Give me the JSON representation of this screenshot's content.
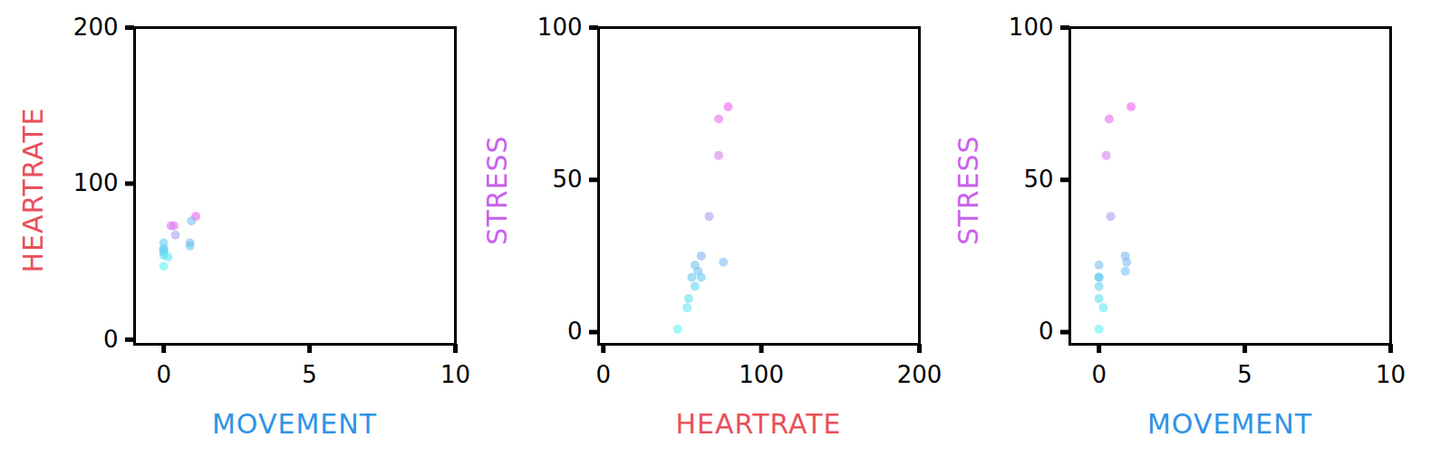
{
  "chart_data": [
    {
      "type": "scatter",
      "x_label": "MOVEMENT",
      "y_label": "HEARTRATE",
      "xlim": [
        -1,
        10
      ],
      "ylim": [
        -3,
        200
      ],
      "xticks": [
        0,
        5,
        10
      ],
      "yticks": [
        0,
        100,
        200
      ],
      "x": [
        1.1,
        0.35,
        0.25,
        0.4,
        0.9,
        0.95,
        0,
        0.9,
        0,
        0,
        0,
        0,
        0.15,
        0
      ],
      "values": [
        79,
        73,
        73,
        67,
        62,
        76,
        58,
        60,
        56,
        62,
        58,
        54,
        53,
        47
      ],
      "colors": [
        "#f060f0",
        "#e870f0",
        "#d880f0",
        "#a8a0f0",
        "#80b8f0",
        "#80bcf0",
        "#78c0f0",
        "#70c8f0",
        "#68ccf0",
        "#68ccf0",
        "#68d4f0",
        "#60e0f0",
        "#60e8f0",
        "#60f4f4"
      ]
    },
    {
      "type": "scatter",
      "x_label": "HEARTRATE",
      "y_label": "STRESS",
      "xlim": [
        -3,
        200
      ],
      "ylim": [
        -4,
        100
      ],
      "xticks": [
        0,
        100,
        200
      ],
      "yticks": [
        0,
        50,
        100
      ],
      "x": [
        79,
        73,
        73,
        67,
        62,
        76,
        58,
        60,
        56,
        62,
        58,
        54,
        53,
        47
      ],
      "values": [
        74,
        70,
        58,
        38,
        25,
        23,
        22,
        20,
        18,
        18,
        15,
        11,
        8,
        1
      ],
      "colors": [
        "#f060f0",
        "#e870f0",
        "#d880f0",
        "#a8a0f0",
        "#80b8f0",
        "#80bcf0",
        "#78c0f0",
        "#70c8f0",
        "#68ccf0",
        "#68ccf0",
        "#68d4f0",
        "#60e0f0",
        "#60e8f0",
        "#60f4f4"
      ]
    },
    {
      "type": "scatter",
      "x_label": "MOVEMENT",
      "y_label": "STRESS",
      "xlim": [
        -1,
        10
      ],
      "ylim": [
        -4,
        100
      ],
      "xticks": [
        0,
        5,
        10
      ],
      "yticks": [
        0,
        50,
        100
      ],
      "x": [
        1.1,
        0.35,
        0.25,
        0.4,
        0.9,
        0.95,
        0,
        0.9,
        0,
        0,
        0,
        0,
        0.15,
        0
      ],
      "values": [
        74,
        70,
        58,
        38,
        25,
        23,
        22,
        20,
        18,
        18,
        15,
        11,
        8,
        1
      ],
      "colors": [
        "#f060f0",
        "#e870f0",
        "#d880f0",
        "#a8a0f0",
        "#80b8f0",
        "#80bcf0",
        "#78c0f0",
        "#70c8f0",
        "#68ccf0",
        "#68ccf0",
        "#68d4f0",
        "#60e0f0",
        "#60e8f0",
        "#60f4f4"
      ]
    }
  ]
}
